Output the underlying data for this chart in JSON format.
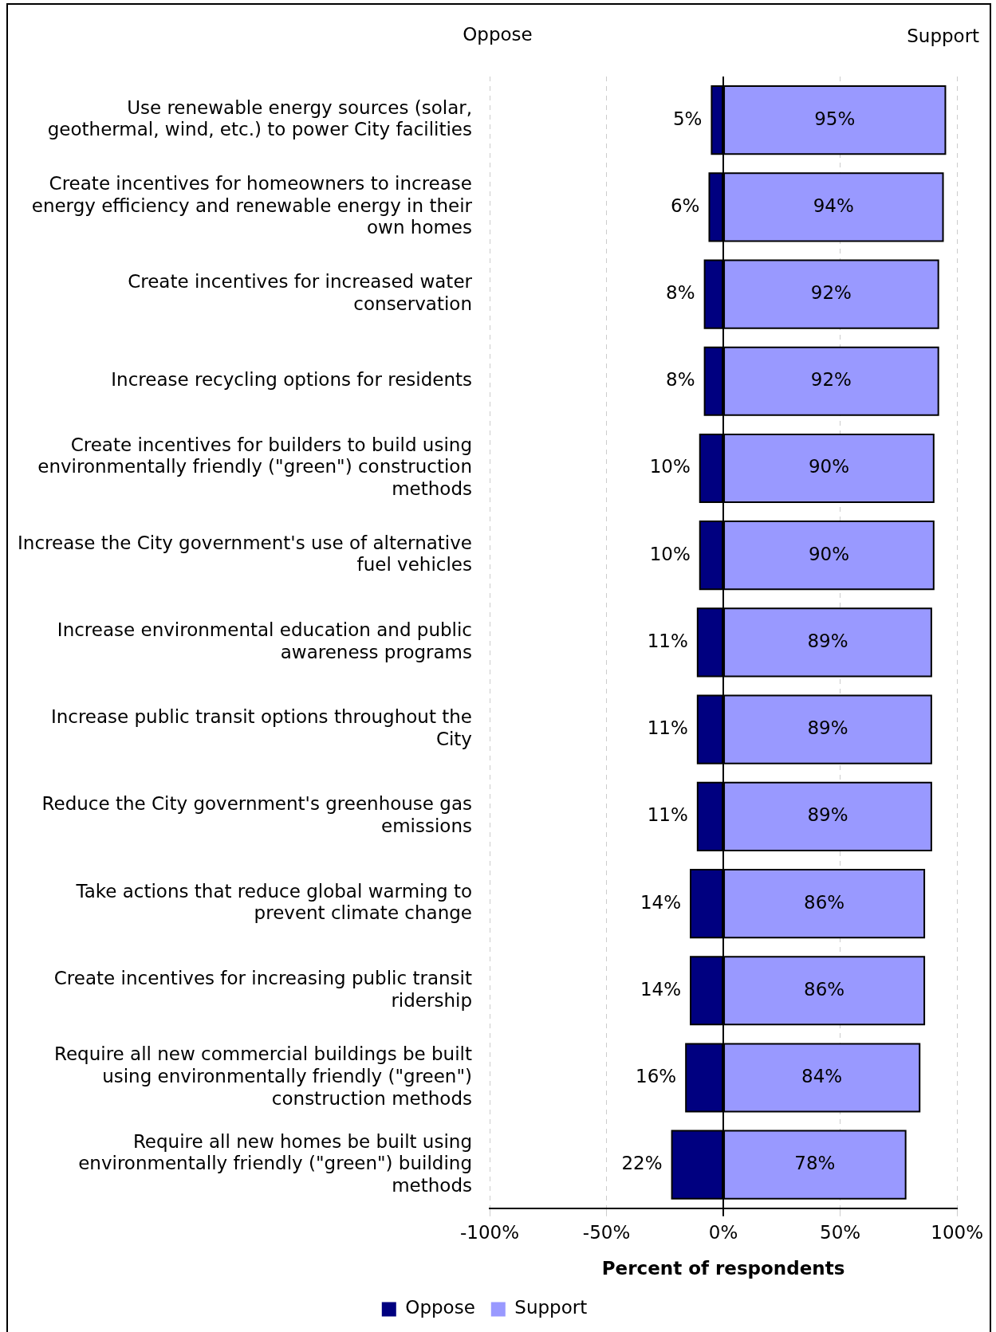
{
  "chart_data": {
    "type": "bar",
    "orientation": "horizontal",
    "stacked": true,
    "categories": [
      "Use renewable energy sources (solar, geothermal, wind, etc.) to power City facilities",
      "Create incentives for homeowners to increase energy efficiency and renewable energy in their own homes",
      "Create incentives for increased water conservation",
      "Increase recycling options for residents",
      "Create incentives for builders to build using environmentally friendly (\"green\") construction methods",
      "Increase the City government's use of alternative fuel vehicles",
      "Increase environmental education and public awareness programs",
      "Increase public transit options throughout the City",
      "Reduce the City government's greenhouse gas emissions",
      "Take actions that reduce global warming to prevent climate change",
      "Create incentives for increasing public transit ridership",
      "Require all new commercial buildings be built using environmentally friendly (\"green\") construction methods",
      "Require all new homes be built using environmentally friendly (\"green\") building methods"
    ],
    "series": [
      {
        "name": "Oppose",
        "color": "#000080",
        "base": [
          -5,
          -6,
          -8,
          -8,
          -10,
          -10,
          -11,
          -11,
          -11,
          -14,
          -14,
          -16,
          -22
        ],
        "values": [
          5,
          6,
          8,
          8,
          10,
          10,
          11,
          11,
          11,
          14,
          14,
          16,
          22
        ],
        "value_labels": [
          "5%",
          "6%",
          "8%",
          "8%",
          "10%",
          "10%",
          "11%",
          "11%",
          "11%",
          "14%",
          "14%",
          "16%",
          "22%"
        ]
      },
      {
        "name": "Support",
        "color": "#9999ff",
        "values": [
          95,
          94,
          92,
          92,
          90,
          90,
          89,
          89,
          89,
          86,
          86,
          84,
          78
        ],
        "value_labels": [
          "95%",
          "94%",
          "92%",
          "92%",
          "90%",
          "90%",
          "89%",
          "89%",
          "89%",
          "86%",
          "86%",
          "84%",
          "78%"
        ]
      }
    ],
    "xlim": [
      -100,
      100
    ],
    "xticks": [
      {
        "value": -100,
        "label": "-100%"
      },
      {
        "value": -50,
        "label": "-50%"
      },
      {
        "value": 0,
        "label": "0%"
      },
      {
        "value": 50,
        "label": "50%"
      },
      {
        "value": 100,
        "label": "100%"
      }
    ],
    "xlabel": "Percent of respondents",
    "annotations": [
      "Oppose",
      "Support"
    ],
    "grid": "x",
    "legend": "bottom"
  }
}
